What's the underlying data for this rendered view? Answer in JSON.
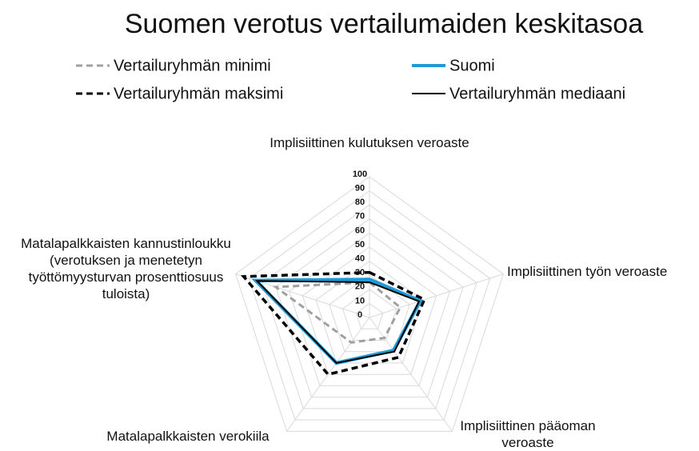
{
  "chart_data": {
    "type": "radar",
    "title": "Suomen verotus vertailumaiden keskitasoa",
    "categories": [
      "Implisiittinen kulutuksen veroaste",
      "Implisiittinen työn veroaste",
      "Implisiittinen pääoman veroaste",
      "Matalapalkkaisten verokiila",
      "Matalapalkkaisten kannustinloukku (verotuksen ja menetetyn työttömyysturvan prosenttiosuus tuloista)"
    ],
    "series": [
      {
        "name": "Vertailuryhmän minimi",
        "color": "#a0a0a0",
        "dashed": true,
        "values": [
          25,
          23,
          18,
          22,
          70
        ]
      },
      {
        "name": "Vertailuryhmän maksimi",
        "color": "#000000",
        "dashed": true,
        "values": [
          32,
          41,
          35,
          50,
          94
        ]
      },
      {
        "name": "Suomi",
        "color": "#1f9ad6",
        "dashed": false,
        "values": [
          27,
          38,
          29,
          40,
          85
        ]
      },
      {
        "name": "Vertailuryhmän mediaani",
        "color": "#000000",
        "dashed": false,
        "values": [
          25,
          37,
          30,
          40,
          84
        ]
      }
    ],
    "rlim": [
      0,
      100
    ],
    "rticks": [
      0,
      10,
      20,
      30,
      40,
      50,
      60,
      70,
      80,
      90,
      100
    ],
    "grid": true
  }
}
